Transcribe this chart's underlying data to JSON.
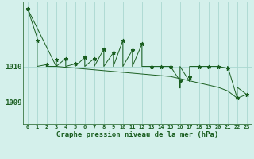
{
  "title": "Graphe pression niveau de la mer (hPa)",
  "background_color": "#d4f0eb",
  "line_color": "#1a5e20",
  "grid_color": "#aad8d0",
  "yticks": [
    1009,
    1010
  ],
  "ylim": [
    1008.4,
    1011.8
  ],
  "xlim": [
    -0.5,
    23.5
  ],
  "top_line_x": [
    0,
    0,
    1,
    1,
    1,
    2,
    2,
    3,
    3,
    3,
    4,
    4,
    4,
    5,
    5,
    5,
    6,
    6,
    6,
    7,
    7,
    7,
    8,
    8,
    8,
    9,
    9,
    9,
    10,
    10,
    10,
    11,
    11,
    11,
    12,
    12,
    12,
    13,
    14,
    15,
    15,
    16,
    16,
    16,
    17,
    17,
    17,
    18,
    19,
    20,
    20,
    21,
    21,
    22,
    22,
    23
  ],
  "top_line_y": [
    1011.6,
    1011.6,
    1010.8,
    1010.65,
    1010.0,
    1010.05,
    1010.0,
    1010.0,
    1010.18,
    1010.0,
    1010.22,
    1010.0,
    1010.0,
    1010.07,
    1010.0,
    1010.0,
    1010.25,
    1010.0,
    1010.0,
    1010.22,
    1010.0,
    1010.0,
    1010.48,
    1010.0,
    1010.0,
    1010.38,
    1010.0,
    1010.0,
    1010.72,
    1010.0,
    1010.0,
    1010.45,
    1010.0,
    1010.0,
    1010.62,
    1010.0,
    1010.0,
    1010.0,
    1010.0,
    1010.0,
    1010.0,
    1009.6,
    1009.4,
    1010.0,
    1009.58,
    1009.7,
    1010.0,
    1010.0,
    1010.0,
    1010.0,
    1010.0,
    1009.95,
    1010.0,
    1009.12,
    1009.42,
    1009.22
  ],
  "bot_line_x": [
    0,
    3,
    15,
    20,
    21,
    22,
    23
  ],
  "bot_line_y": [
    1011.6,
    1010.0,
    1009.72,
    1009.42,
    1009.32,
    1009.12,
    1009.22
  ],
  "markers_x": [
    0,
    1,
    2,
    3,
    4,
    5,
    6,
    7,
    8,
    9,
    10,
    11,
    12,
    13,
    14,
    15,
    16,
    17,
    18,
    19,
    20,
    21,
    22,
    23
  ],
  "markers_y": [
    1011.6,
    1010.72,
    1010.05,
    1010.18,
    1010.22,
    1010.07,
    1010.25,
    1010.22,
    1010.48,
    1010.38,
    1010.72,
    1010.45,
    1010.62,
    1010.0,
    1010.0,
    1010.0,
    1009.6,
    1009.7,
    1010.0,
    1010.0,
    1010.0,
    1009.95,
    1009.12,
    1009.22
  ]
}
